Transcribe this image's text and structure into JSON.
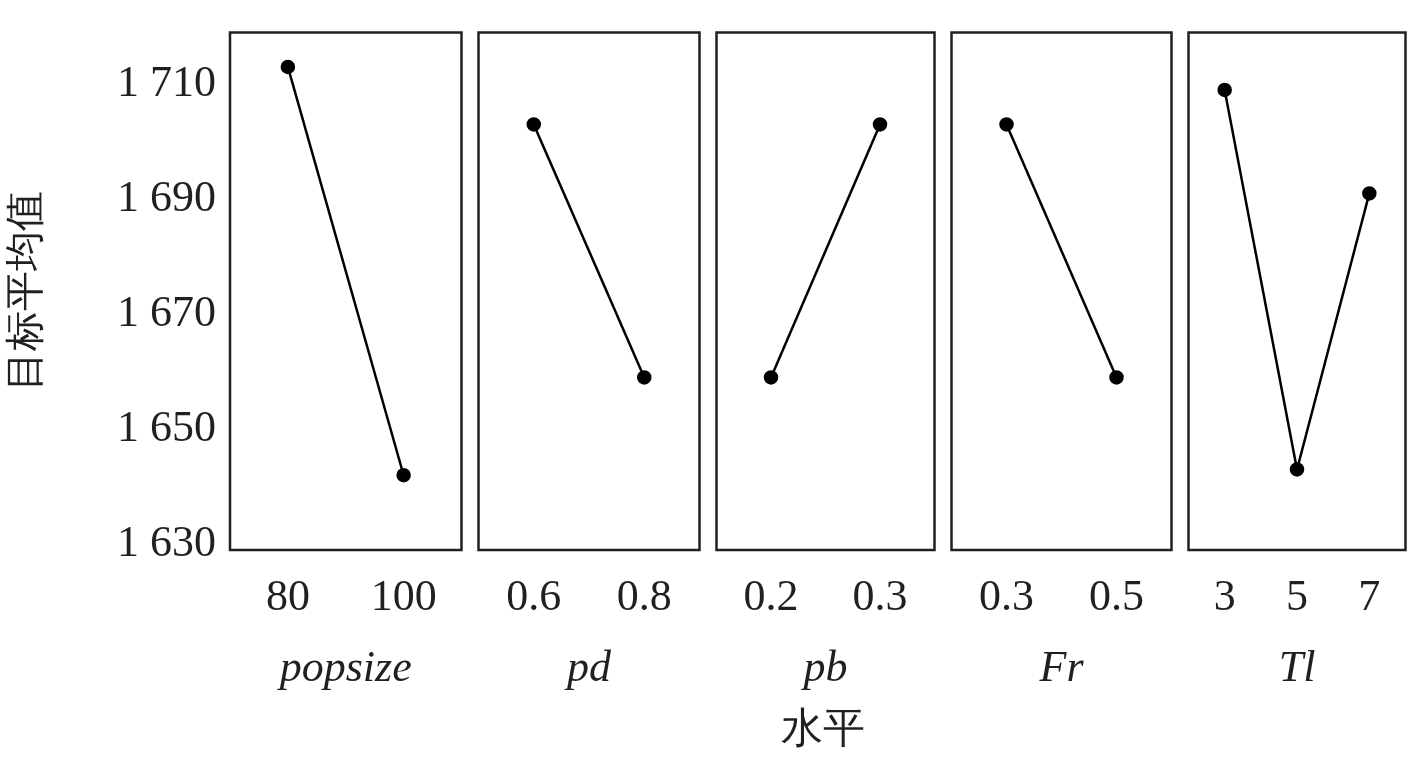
{
  "chart_data": [
    {
      "type": "line",
      "categories": [
        "80",
        "100"
      ],
      "series": [
        {
          "color": "#000000",
          "values": [
            1713,
            1642
          ]
        }
      ],
      "xlabel": "popsize",
      "ylabel": "目标平均值",
      "ylim": [
        1629,
        1719
      ],
      "yticks": [
        {
          "value": 1630,
          "label": "1 630"
        },
        {
          "value": 1650,
          "label": "1 650"
        },
        {
          "value": 1670,
          "label": "1 670"
        },
        {
          "value": 1690,
          "label": "1 690"
        },
        {
          "value": 1710,
          "label": "1 710"
        }
      ],
      "marker": "circle"
    },
    {
      "type": "line",
      "categories": [
        "0.6",
        "0.8"
      ],
      "series": [
        {
          "color": "#000000",
          "values": [
            1703,
            1659
          ]
        }
      ],
      "xlabel": "pd",
      "ylim": [
        1629,
        1719
      ],
      "tick_labels": "x",
      "marker": "circle"
    },
    {
      "type": "line",
      "categories": [
        "0.2",
        "0.3"
      ],
      "series": [
        {
          "color": "#000000",
          "values": [
            1659,
            1703
          ]
        }
      ],
      "xlabel": "pb",
      "ylim": [
        1629,
        1719
      ],
      "tick_labels": "x",
      "marker": "circle",
      "annotations": [
        "水平"
      ]
    },
    {
      "type": "line",
      "categories": [
        "0.3",
        "0.5"
      ],
      "series": [
        {
          "color": "#000000",
          "values": [
            1703,
            1659
          ]
        }
      ],
      "xlabel": "Fr",
      "ylim": [
        1629,
        1719
      ],
      "tick_labels": "x",
      "marker": "circle"
    },
    {
      "type": "line",
      "categories": [
        "3",
        "5",
        "7"
      ],
      "series": [
        {
          "color": "#000000",
          "values": [
            1709,
            1643,
            1691
          ]
        }
      ],
      "xlabel": "Tl",
      "ylim": [
        1629,
        1719
      ],
      "tick_labels": "x",
      "marker": "circle"
    }
  ]
}
